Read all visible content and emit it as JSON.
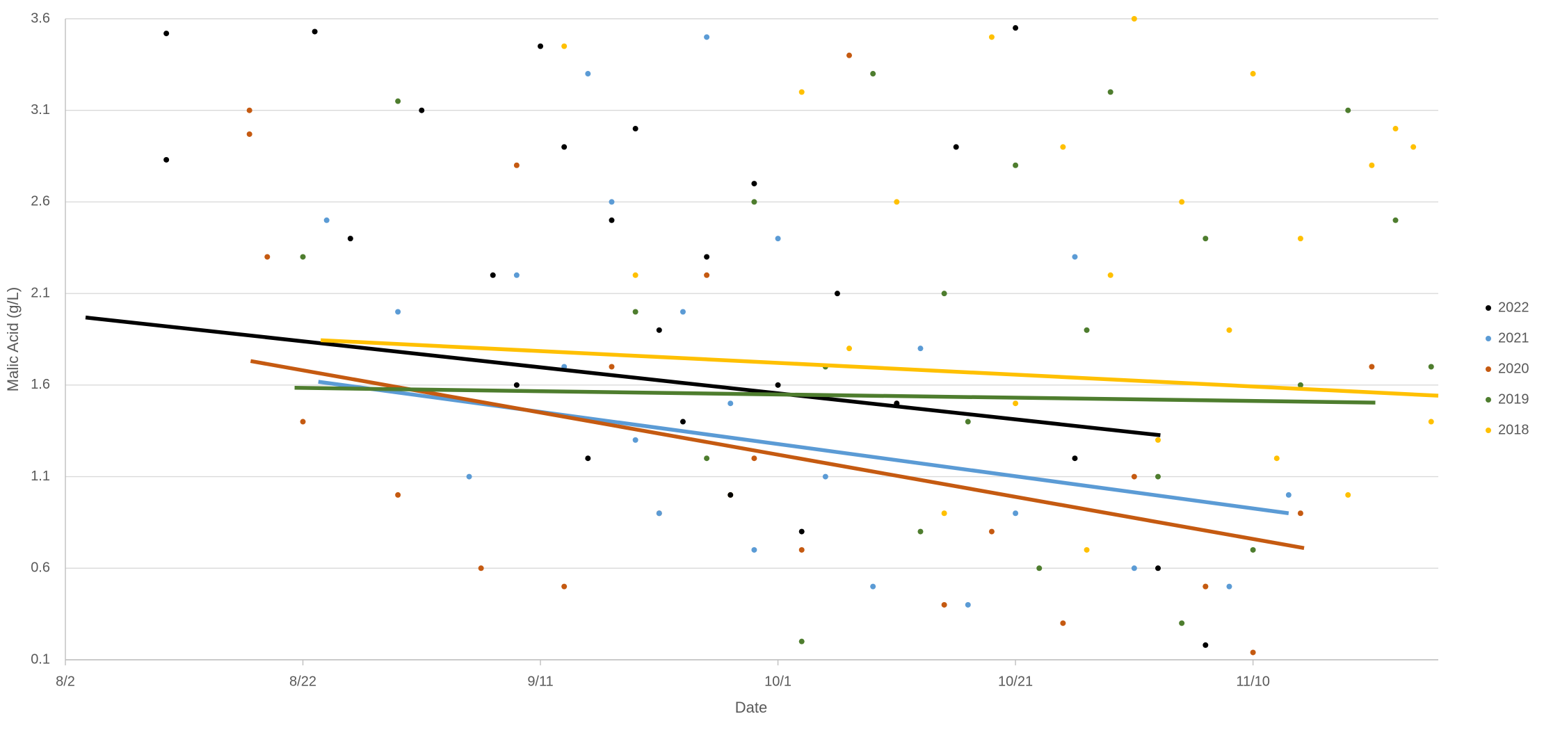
{
  "chart_data": {
    "type": "scatter",
    "x_label": "Date",
    "y_label": "Malic Acid (g/L)",
    "xlim": [
      0,
      115.6
    ],
    "xticks": [
      {
        "value": 0,
        "label": "8/2"
      },
      {
        "value": 20,
        "label": "8/22"
      },
      {
        "value": 40,
        "label": "9/11"
      },
      {
        "value": 60,
        "label": "10/1"
      },
      {
        "value": 80,
        "label": "10/21"
      },
      {
        "value": 100,
        "label": "11/10"
      }
    ],
    "ylim": [
      0.1,
      3.6
    ],
    "yticks": [
      0.1,
      0.6,
      1.1,
      1.6,
      2.1,
      2.6,
      3.1,
      3.6
    ],
    "grid": true,
    "legend": "right",
    "series": [
      {
        "name": "2022",
        "color": "#000000",
        "x": [
          8.5,
          8.5,
          21,
          24,
          30,
          36,
          38,
          40,
          42,
          44,
          46,
          48,
          50,
          52,
          54,
          56,
          58,
          60,
          62,
          65,
          70,
          75,
          80,
          85,
          92,
          96
        ],
        "values": [
          3.52,
          2.83,
          3.53,
          2.4,
          3.1,
          2.2,
          1.6,
          3.45,
          2.9,
          1.2,
          2.5,
          3.0,
          1.9,
          1.4,
          2.3,
          1.0,
          2.7,
          1.6,
          0.8,
          2.1,
          1.5,
          2.9,
          3.55,
          1.2,
          0.6,
          0.18
        ],
        "trendline": {
          "x": [
            1.7,
            92.2
          ],
          "values": [
            1.969,
            1.326
          ]
        }
      },
      {
        "name": "2021",
        "color": "#5b9bd5",
        "x": [
          22,
          28,
          34,
          38,
          42,
          44,
          46,
          48,
          50,
          52,
          54,
          56,
          58,
          60,
          64,
          68,
          72,
          76,
          80,
          85,
          90,
          98,
          103
        ],
        "values": [
          2.5,
          2.0,
          1.1,
          2.2,
          1.7,
          3.3,
          2.6,
          1.3,
          0.9,
          2.0,
          3.5,
          1.5,
          0.7,
          2.4,
          1.1,
          0.5,
          1.8,
          0.4,
          0.9,
          2.3,
          0.6,
          0.5,
          1.0
        ],
        "trendline": {
          "x": [
            21.3,
            103
          ],
          "values": [
            1.618,
            0.9
          ]
        }
      },
      {
        "name": "2020",
        "color": "#c55a11",
        "x": [
          15.5,
          15.5,
          17,
          20,
          28,
          35,
          38,
          42,
          46,
          50,
          54,
          58,
          62,
          66,
          70,
          74,
          78,
          84,
          90,
          96,
          100,
          104,
          110
        ],
        "values": [
          3.1,
          2.97,
          2.3,
          1.4,
          1.0,
          0.6,
          2.8,
          0.5,
          1.7,
          0.9,
          2.2,
          1.2,
          0.7,
          3.4,
          1.5,
          0.4,
          0.8,
          0.3,
          1.1,
          0.5,
          0.14,
          0.9,
          1.7
        ],
        "trendline": {
          "x": [
            15.6,
            104.3
          ],
          "values": [
            1.731,
            0.71
          ]
        }
      },
      {
        "name": "2019",
        "color": "#4e7d2e",
        "x": [
          20,
          28,
          48,
          54,
          58,
          62,
          64,
          68,
          72,
          74,
          76,
          80,
          82,
          86,
          88,
          92,
          94,
          96,
          100,
          104,
          108,
          112,
          115
        ],
        "values": [
          2.3,
          3.15,
          2.0,
          1.2,
          2.6,
          0.2,
          1.7,
          3.3,
          0.8,
          2.1,
          1.4,
          2.8,
          0.6,
          1.9,
          3.2,
          1.1,
          0.3,
          2.4,
          0.7,
          1.6,
          3.1,
          2.5,
          1.7
        ],
        "trendline": {
          "x": [
            19.3,
            110.3
          ],
          "values": [
            1.585,
            1.504
          ]
        }
      },
      {
        "name": "2018",
        "color": "#ffc000",
        "x": [
          42,
          48,
          56,
          62,
          66,
          70,
          74,
          78,
          80,
          84,
          86,
          88,
          90,
          92,
          94,
          96,
          98,
          100,
          102,
          104,
          108,
          110,
          112,
          113.5,
          115
        ],
        "values": [
          3.45,
          2.2,
          1.0,
          3.2,
          1.8,
          2.6,
          0.9,
          3.5,
          1.5,
          2.9,
          0.7,
          2.2,
          3.6,
          1.3,
          2.6,
          0.5,
          1.9,
          3.3,
          1.2,
          2.4,
          1.0,
          2.8,
          3.0,
          2.9,
          1.4
        ],
        "trendline": {
          "x": [
            21.5,
            115.6
          ],
          "values": [
            1.845,
            1.542
          ]
        }
      }
    ]
  }
}
